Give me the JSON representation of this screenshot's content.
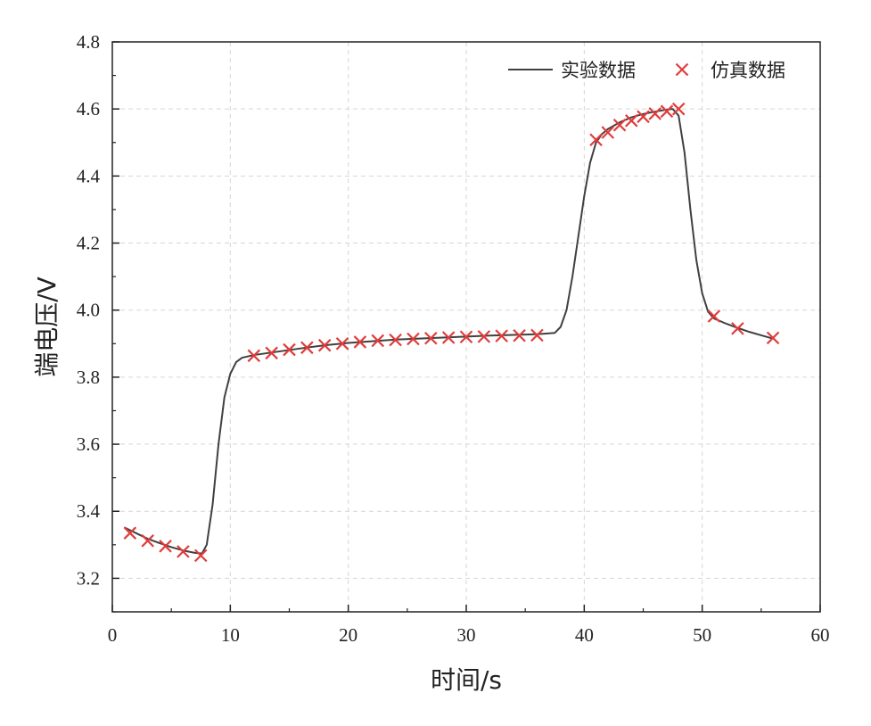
{
  "chart_data": {
    "type": "line",
    "title": "",
    "xlabel": "时间/s",
    "ylabel": "端电压/V",
    "xlim": [
      0,
      60
    ],
    "ylim": [
      3.1,
      4.8
    ],
    "xticks": [
      0,
      10,
      20,
      30,
      40,
      50,
      60
    ],
    "xtick_labels": [
      "0",
      "10",
      "20",
      "30",
      "40",
      "50",
      "60"
    ],
    "yticks": [
      3.2,
      3.4,
      3.6,
      3.8,
      4.0,
      4.2,
      4.4,
      4.6,
      4.8
    ],
    "ytick_labels": [
      "3.2",
      "3.4",
      "3.6",
      "3.8",
      "4.0",
      "4.2",
      "4.4",
      "4.6",
      "4.8"
    ],
    "grid": true,
    "legend_position": "top-right",
    "series": [
      {
        "name": "实验数据",
        "style": "line",
        "color": "#404040",
        "points": [
          [
            1.0,
            3.352
          ],
          [
            2.0,
            3.335
          ],
          [
            3.0,
            3.318
          ],
          [
            4.0,
            3.305
          ],
          [
            5.0,
            3.293
          ],
          [
            6.0,
            3.283
          ],
          [
            7.0,
            3.276
          ],
          [
            7.6,
            3.274
          ],
          [
            8.0,
            3.3
          ],
          [
            8.5,
            3.42
          ],
          [
            9.0,
            3.6
          ],
          [
            9.5,
            3.74
          ],
          [
            10.0,
            3.81
          ],
          [
            10.5,
            3.845
          ],
          [
            11.0,
            3.858
          ],
          [
            12.0,
            3.866
          ],
          [
            14.0,
            3.876
          ],
          [
            16.0,
            3.886
          ],
          [
            18.0,
            3.895
          ],
          [
            20.0,
            3.902
          ],
          [
            22.0,
            3.907
          ],
          [
            24.0,
            3.912
          ],
          [
            26.0,
            3.915
          ],
          [
            28.0,
            3.918
          ],
          [
            30.0,
            3.921
          ],
          [
            32.0,
            3.924
          ],
          [
            34.0,
            3.926
          ],
          [
            36.0,
            3.928
          ],
          [
            37.5,
            3.932
          ],
          [
            38.0,
            3.95
          ],
          [
            38.5,
            4.0
          ],
          [
            39.0,
            4.1
          ],
          [
            39.5,
            4.22
          ],
          [
            40.0,
            4.34
          ],
          [
            40.5,
            4.44
          ],
          [
            41.0,
            4.5
          ],
          [
            41.5,
            4.525
          ],
          [
            42.0,
            4.54
          ],
          [
            43.0,
            4.56
          ],
          [
            44.0,
            4.575
          ],
          [
            45.0,
            4.585
          ],
          [
            46.0,
            4.592
          ],
          [
            47.0,
            4.598
          ],
          [
            47.5,
            4.6
          ],
          [
            48.0,
            4.58
          ],
          [
            48.5,
            4.47
          ],
          [
            49.0,
            4.3
          ],
          [
            49.5,
            4.15
          ],
          [
            50.0,
            4.05
          ],
          [
            50.5,
            3.995
          ],
          [
            51.0,
            3.975
          ],
          [
            52.0,
            3.96
          ],
          [
            53.0,
            3.947
          ],
          [
            54.0,
            3.935
          ],
          [
            55.0,
            3.925
          ],
          [
            56.0,
            3.915
          ]
        ]
      },
      {
        "name": "仿真数据",
        "style": "marker-x",
        "color": "#e03c3c",
        "points": [
          [
            1.5,
            3.335
          ],
          [
            3.0,
            3.312
          ],
          [
            4.5,
            3.296
          ],
          [
            6.0,
            3.28
          ],
          [
            7.5,
            3.268
          ],
          [
            12.0,
            3.864
          ],
          [
            13.5,
            3.872
          ],
          [
            15.0,
            3.882
          ],
          [
            16.5,
            3.888
          ],
          [
            18.0,
            3.895
          ],
          [
            19.5,
            3.9
          ],
          [
            21.0,
            3.905
          ],
          [
            22.5,
            3.909
          ],
          [
            24.0,
            3.911
          ],
          [
            25.5,
            3.914
          ],
          [
            27.0,
            3.916
          ],
          [
            28.5,
            3.918
          ],
          [
            30.0,
            3.92
          ],
          [
            31.5,
            3.921
          ],
          [
            33.0,
            3.923
          ],
          [
            34.5,
            3.924
          ],
          [
            36.0,
            3.925
          ],
          [
            41.0,
            4.508
          ],
          [
            42.0,
            4.53
          ],
          [
            43.0,
            4.552
          ],
          [
            44.0,
            4.565
          ],
          [
            45.0,
            4.577
          ],
          [
            46.0,
            4.586
          ],
          [
            47.0,
            4.593
          ],
          [
            48.0,
            4.6
          ],
          [
            51.0,
            3.982
          ],
          [
            53.0,
            3.945
          ],
          [
            56.0,
            3.917
          ]
        ]
      }
    ]
  }
}
